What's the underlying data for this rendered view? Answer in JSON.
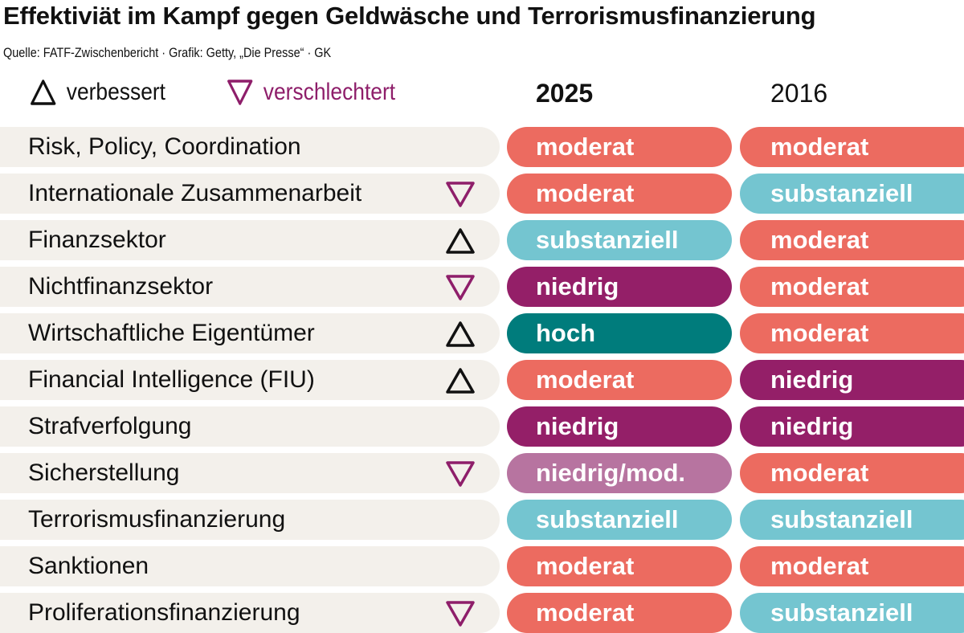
{
  "title": "Effektiviät im Kampf gegen Geldwäsche und Terrorismusfinanzierung",
  "source": "Quelle:  FATF-Zwischenbericht · Grafik: Getty, „Die Presse“ · GK",
  "legend": {
    "improved": {
      "label": "verbessert",
      "icon": "triangle-up-outline",
      "color": "#111111"
    },
    "worsened": {
      "label": "verschlechtert",
      "icon": "triangle-down-outline",
      "color": "#8e1e6a"
    }
  },
  "columns": {
    "current": "2025",
    "previous": "2016"
  },
  "rating_colors": {
    "moderat": "#ec6b60",
    "substanziell": "#74c5d0",
    "niedrig": "#941f68",
    "hoch": "#007c7c",
    "niedrig/mod.": "#b774a0"
  },
  "chart_data": {
    "type": "table",
    "title": "Effektiviät im Kampf gegen Geldwäsche und Terrorismusfinanzierung",
    "columns": [
      "",
      "2025",
      "2016"
    ],
    "rows": [
      {
        "label": "Risk, Policy, Coordination",
        "trend": "",
        "r2025": "moderat",
        "r2016": "moderat"
      },
      {
        "label": "Internationale Zusammenarbeit",
        "trend": "verschlechtert",
        "r2025": "moderat",
        "r2016": "substanziell"
      },
      {
        "label": "Finanzsektor",
        "trend": "verbessert",
        "r2025": "substanziell",
        "r2016": "moderat"
      },
      {
        "label": "Nichtfinanzsektor",
        "trend": "verschlechtert",
        "r2025": "niedrig",
        "r2016": "moderat"
      },
      {
        "label": "Wirtschaftliche Eigentümer",
        "trend": "verbessert",
        "r2025": "hoch",
        "r2016": "moderat"
      },
      {
        "label": "Financial Intelligence (FIU)",
        "trend": "verbessert",
        "r2025": "moderat",
        "r2016": "niedrig"
      },
      {
        "label": "Strafverfolgung",
        "trend": "",
        "r2025": "niedrig",
        "r2016": "niedrig"
      },
      {
        "label": "Sicherstellung",
        "trend": "verschlechtert",
        "r2025": "niedrig/mod.",
        "r2016": "moderat"
      },
      {
        "label": "Terrorismusfinanzierung",
        "trend": "",
        "r2025": "substanziell",
        "r2016": "substanziell"
      },
      {
        "label": "Sanktionen",
        "trend": "",
        "r2025": "moderat",
        "r2016": "moderat"
      },
      {
        "label": "Proliferationsfinanzierung",
        "trend": "verschlechtert",
        "r2025": "moderat",
        "r2016": "substanziell"
      }
    ]
  }
}
